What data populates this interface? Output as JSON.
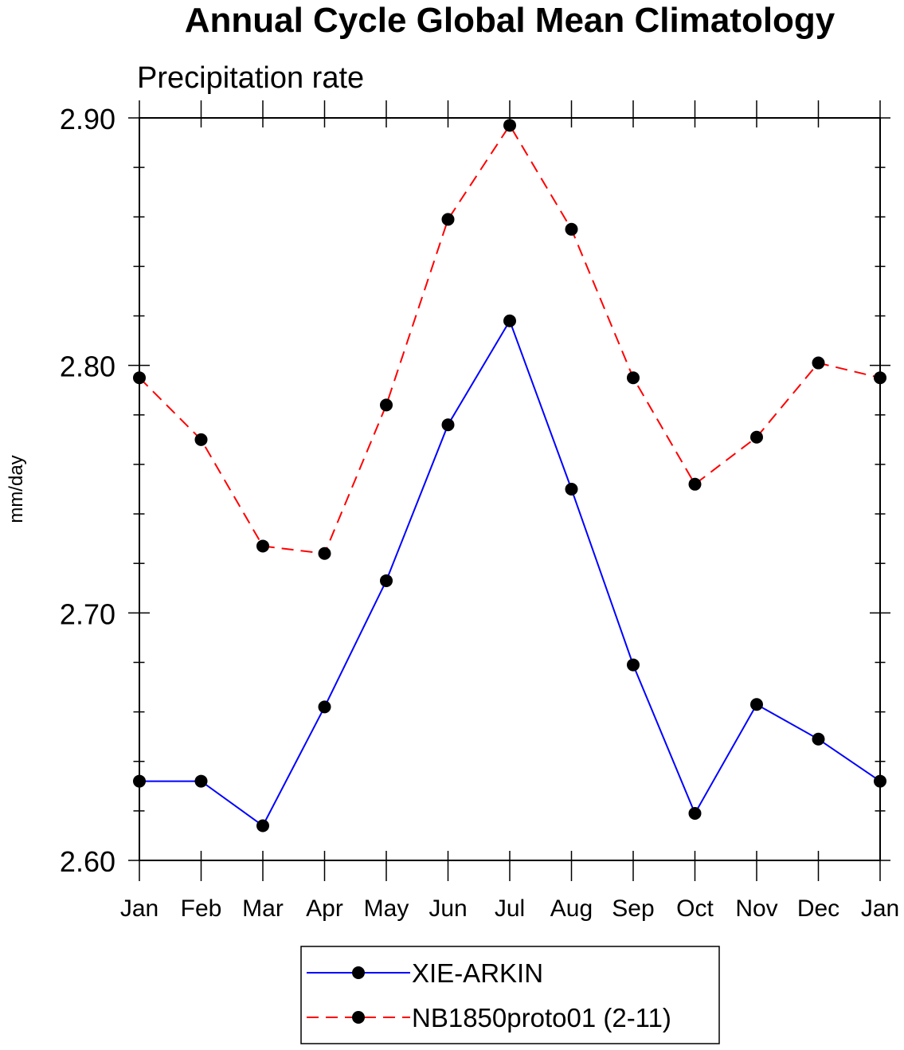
{
  "chart_data": {
    "type": "line",
    "title": "Annual Cycle Global Mean Climatology",
    "subtitle": "Precipitation rate",
    "xlabel": "",
    "ylabel": "mm/day",
    "categories": [
      "Jan",
      "Feb",
      "Mar",
      "Apr",
      "May",
      "Jun",
      "Jul",
      "Aug",
      "Sep",
      "Oct",
      "Nov",
      "Dec",
      "Jan"
    ],
    "ylim": [
      2.6,
      2.9
    ],
    "yticks": [
      "2.60",
      "2.70",
      "2.80",
      "2.90"
    ],
    "grid": false,
    "legend_position": "bottom-center",
    "series": [
      {
        "name": "XIE-ARKIN",
        "color": "#0000ff",
        "dash": "solid",
        "marker": "filled-circle",
        "values": [
          2.632,
          2.632,
          2.614,
          2.662,
          2.713,
          2.776,
          2.818,
          2.75,
          2.679,
          2.619,
          2.663,
          2.649,
          2.632
        ]
      },
      {
        "name": "NB1850proto01 (2-11)",
        "color": "#ff0000",
        "dash": "dashed",
        "marker": "filled-circle",
        "values": [
          2.795,
          2.77,
          2.727,
          2.724,
          2.784,
          2.859,
          2.897,
          2.855,
          2.795,
          2.752,
          2.771,
          2.801,
          2.795
        ]
      }
    ]
  }
}
